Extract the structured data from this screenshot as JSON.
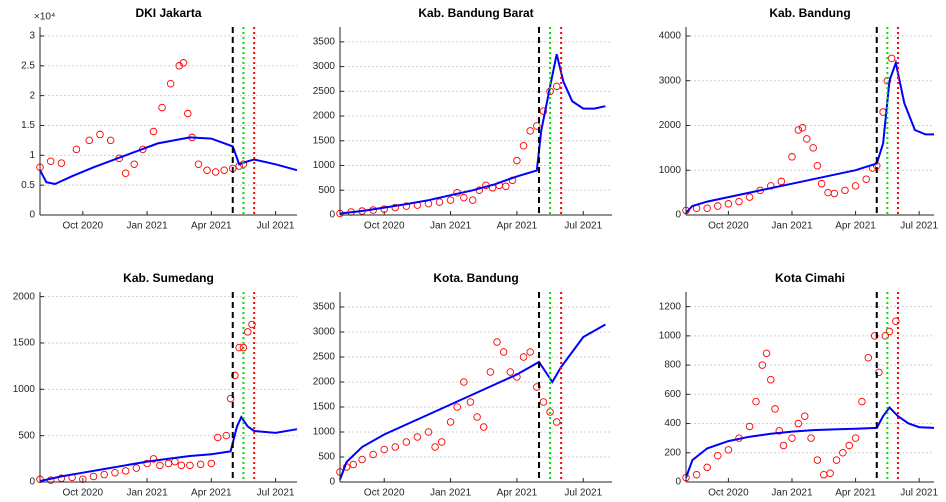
{
  "chart_data": [
    {
      "type": "scatter",
      "title": "DKI Jakarta",
      "y_multiplier": "×10⁴",
      "grid": true,
      "xlim": [
        8,
        20
      ],
      "xticks": [
        {
          "value": 10,
          "label": "Oct 2020"
        },
        {
          "value": 13,
          "label": "Jan 2021"
        },
        {
          "value": 16,
          "label": "Apr 2021"
        },
        {
          "value": 19,
          "label": "Jul 2021"
        }
      ],
      "ylim": [
        0,
        31500
      ],
      "yticks": [
        0,
        {
          "value": 5000,
          "label": "0.5"
        },
        {
          "value": 10000,
          "label": "1"
        },
        {
          "value": 15000,
          "label": "1.5"
        },
        {
          "value": 20000,
          "label": "2"
        },
        {
          "value": 25000,
          "label": "2.5"
        },
        {
          "value": 30000,
          "label": "3"
        }
      ],
      "series": [
        {
          "type": "scatter",
          "color": "#ff0000",
          "x": [
            8,
            8.5,
            9,
            9.7,
            10.3,
            10.8,
            11.3,
            11.7,
            12,
            12.4,
            12.8,
            13.3,
            13.7,
            14.1,
            14.5,
            14.7,
            14.9,
            15.1,
            15.4,
            15.8,
            16.2,
            16.6,
            17,
            17.3,
            17.5
          ],
          "values": [
            8000,
            9000,
            8700,
            11000,
            12500,
            13500,
            12500,
            9500,
            7000,
            8500,
            11000,
            14000,
            18000,
            22000,
            25000,
            25500,
            17000,
            13000,
            8500,
            7500,
            7200,
            7500,
            7800,
            8200,
            8500
          ]
        },
        {
          "type": "line",
          "color": "#0000ff",
          "x": [
            8,
            8.3,
            8.7,
            9.5,
            10.5,
            12,
            13.5,
            15,
            16,
            17,
            17.3,
            17.7,
            18,
            19,
            20
          ],
          "values": [
            7500,
            5500,
            5200,
            6500,
            8000,
            10000,
            12000,
            13000,
            12800,
            11500,
            8500,
            9000,
            9300,
            8500,
            7500
          ]
        }
      ],
      "vlines": [
        {
          "x": 17,
          "color": "#000000",
          "style": "dashed"
        },
        {
          "x": 17.5,
          "color": "#00dd00",
          "style": "dotted"
        },
        {
          "x": 18,
          "color": "#ff0000",
          "style": "dotted"
        }
      ]
    },
    {
      "type": "scatter",
      "title": "Kab. Bandung Barat",
      "grid": true,
      "xlim": [
        8,
        20.3
      ],
      "xticks": [
        {
          "value": 10,
          "label": "Oct 2020"
        },
        {
          "value": 13,
          "label": "Jan 2021"
        },
        {
          "value": 16,
          "label": "Apr 2021"
        },
        {
          "value": 19,
          "label": "Jul 2021"
        }
      ],
      "ylim": [
        0,
        3800
      ],
      "yticks": [
        0,
        500,
        1000,
        1500,
        2000,
        2500,
        3000,
        3500
      ],
      "series": [
        {
          "type": "scatter",
          "color": "#ff0000",
          "x": [
            8,
            8.5,
            9,
            9.5,
            10,
            10.5,
            11,
            11.5,
            12,
            12.5,
            13,
            13.3,
            13.6,
            14,
            14.3,
            14.6,
            14.9,
            15.2,
            15.5,
            15.8,
            16,
            16.3,
            16.6,
            16.9,
            17.2,
            17.5,
            17.8
          ],
          "values": [
            30,
            60,
            80,
            100,
            120,
            150,
            180,
            200,
            230,
            260,
            300,
            450,
            350,
            300,
            500,
            600,
            550,
            600,
            580,
            700,
            1100,
            1400,
            1700,
            1800,
            2100,
            2500,
            2600
          ]
        },
        {
          "type": "line",
          "color": "#0000ff",
          "x": [
            8,
            9,
            10,
            11,
            12,
            13,
            14,
            15,
            16,
            16.9,
            17.1,
            17.5,
            17.8,
            18.1,
            18.5,
            19,
            19.5,
            20
          ],
          "values": [
            30,
            80,
            150,
            220,
            300,
            400,
            500,
            620,
            780,
            900,
            1700,
            2600,
            3250,
            2700,
            2300,
            2150,
            2150,
            2200
          ]
        }
      ],
      "vlines": [
        {
          "x": 17,
          "color": "#000000",
          "style": "dashed"
        },
        {
          "x": 17.5,
          "color": "#00dd00",
          "style": "dotted"
        },
        {
          "x": 18,
          "color": "#ff0000",
          "style": "dotted"
        }
      ]
    },
    {
      "type": "scatter",
      "title": "Kab. Bandung",
      "grid": true,
      "xlim": [
        8,
        19.7
      ],
      "xticks": [
        {
          "value": 10,
          "label": "Oct 2020"
        },
        {
          "value": 13,
          "label": "Jan 2021"
        },
        {
          "value": 16,
          "label": "Apr 2021"
        },
        {
          "value": 19,
          "label": "Jul 2021"
        }
      ],
      "ylim": [
        0,
        4200
      ],
      "yticks": [
        0,
        1000,
        2000,
        3000,
        4000
      ],
      "series": [
        {
          "type": "scatter",
          "color": "#ff0000",
          "x": [
            8,
            8.5,
            9,
            9.5,
            10,
            10.5,
            11,
            11.5,
            12,
            12.5,
            13,
            13.3,
            13.5,
            13.7,
            14,
            14.2,
            14.4,
            14.7,
            15,
            15.5,
            16,
            16.5,
            16.8,
            17,
            17.3,
            17.5,
            17.7
          ],
          "values": [
            100,
            150,
            150,
            200,
            250,
            300,
            400,
            550,
            650,
            750,
            1300,
            1900,
            1950,
            1700,
            1500,
            1100,
            700,
            500,
            480,
            550,
            650,
            800,
            1050,
            1100,
            2300,
            3000,
            3500
          ]
        },
        {
          "type": "line",
          "color": "#0000ff",
          "x": [
            8,
            8.3,
            9,
            10,
            11,
            12,
            13,
            14,
            15,
            16,
            17,
            17.3,
            17.6,
            17.9,
            18.3,
            18.8,
            19.3,
            19.7
          ],
          "values": [
            50,
            200,
            300,
            400,
            500,
            600,
            700,
            800,
            900,
            1000,
            1150,
            1600,
            3000,
            3400,
            2500,
            1900,
            1800,
            1800
          ]
        }
      ],
      "vlines": [
        {
          "x": 17,
          "color": "#000000",
          "style": "dashed"
        },
        {
          "x": 17.5,
          "color": "#00dd00",
          "style": "dotted"
        },
        {
          "x": 18,
          "color": "#ff0000",
          "style": "dotted"
        }
      ]
    },
    {
      "type": "scatter",
      "title": "Kab. Sumedang",
      "grid": true,
      "xlim": [
        8,
        20
      ],
      "xticks": [
        {
          "value": 10,
          "label": "Oct 2020"
        },
        {
          "value": 13,
          "label": "Jan 2021"
        },
        {
          "value": 16,
          "label": "Apr 2021"
        },
        {
          "value": 19,
          "label": "Jul 2021"
        }
      ],
      "ylim": [
        0,
        2050
      ],
      "yticks": [
        0,
        500,
        1000,
        1500,
        2000
      ],
      "series": [
        {
          "type": "scatter",
          "color": "#ff0000",
          "x": [
            8,
            8.5,
            9,
            9.5,
            10,
            10.5,
            11,
            11.5,
            12,
            12.5,
            13,
            13.3,
            13.6,
            14,
            14.3,
            14.6,
            15,
            15.5,
            16,
            16.3,
            16.7,
            16.9,
            17.1,
            17.3,
            17.5,
            17.7,
            17.9
          ],
          "values": [
            30,
            20,
            40,
            50,
            30,
            60,
            80,
            100,
            120,
            150,
            200,
            250,
            180,
            200,
            220,
            180,
            180,
            190,
            200,
            480,
            500,
            900,
            1150,
            1450,
            1450,
            1620,
            1700
          ]
        },
        {
          "type": "line",
          "color": "#0000ff",
          "x": [
            8,
            9,
            10,
            11,
            12,
            13,
            14,
            15,
            16,
            16.9,
            17.2,
            17.4,
            17.7,
            18,
            19,
            20
          ],
          "values": [
            10,
            60,
            100,
            140,
            180,
            220,
            250,
            280,
            300,
            330,
            600,
            700,
            600,
            550,
            530,
            570
          ]
        }
      ],
      "vlines": [
        {
          "x": 17,
          "color": "#000000",
          "style": "dashed"
        },
        {
          "x": 17.5,
          "color": "#00dd00",
          "style": "dotted"
        },
        {
          "x": 18,
          "color": "#ff0000",
          "style": "dotted"
        }
      ]
    },
    {
      "type": "scatter",
      "title": "Kota. Bandung",
      "grid": true,
      "xlim": [
        8,
        20.3
      ],
      "xticks": [
        {
          "value": 10,
          "label": "Oct 2020"
        },
        {
          "value": 13,
          "label": "Jan 2021"
        },
        {
          "value": 16,
          "label": "Apr 2021"
        },
        {
          "value": 19,
          "label": "Jul 2021"
        }
      ],
      "ylim": [
        0,
        3800
      ],
      "yticks": [
        0,
        500,
        1000,
        1500,
        2000,
        2500,
        3000,
        3500
      ],
      "series": [
        {
          "type": "scatter",
          "color": "#ff0000",
          "x": [
            8,
            8.3,
            8.6,
            9,
            9.5,
            10,
            10.5,
            11,
            11.5,
            12,
            12.3,
            12.6,
            13,
            13.3,
            13.6,
            13.9,
            14.2,
            14.5,
            14.8,
            15.1,
            15.4,
            15.7,
            16,
            16.3,
            16.6,
            16.9,
            17.2,
            17.5,
            17.8
          ],
          "values": [
            200,
            300,
            350,
            450,
            550,
            650,
            700,
            800,
            900,
            1000,
            700,
            800,
            1200,
            1500,
            2000,
            1600,
            1300,
            1100,
            2200,
            2800,
            2600,
            2200,
            2100,
            2500,
            2600,
            1900,
            1600,
            1400,
            1200
          ]
        },
        {
          "type": "line",
          "color": "#0000ff",
          "x": [
            8,
            8.3,
            9,
            10,
            11,
            12,
            13,
            14,
            15,
            16,
            17,
            17.3,
            17.6,
            18,
            18.5,
            19,
            20
          ],
          "values": [
            50,
            400,
            700,
            950,
            1150,
            1350,
            1550,
            1750,
            1950,
            2150,
            2400,
            2200,
            2000,
            2300,
            2600,
            2900,
            3150
          ]
        }
      ],
      "vlines": [
        {
          "x": 17,
          "color": "#000000",
          "style": "dashed"
        },
        {
          "x": 17.5,
          "color": "#00dd00",
          "style": "dotted"
        },
        {
          "x": 18,
          "color": "#ff0000",
          "style": "dotted"
        }
      ]
    },
    {
      "type": "scatter",
      "title": "Kota Cimahi",
      "grid": true,
      "xlim": [
        8,
        19.7
      ],
      "xticks": [
        {
          "value": 10,
          "label": "Oct 2020"
        },
        {
          "value": 13,
          "label": "Jan 2021"
        },
        {
          "value": 16,
          "label": "Apr 2021"
        },
        {
          "value": 19,
          "label": "Jul 2021"
        }
      ],
      "ylim": [
        0,
        1300
      ],
      "yticks": [
        0,
        200,
        400,
        600,
        800,
        1000,
        1200
      ],
      "series": [
        {
          "type": "scatter",
          "color": "#ff0000",
          "x": [
            8,
            8.5,
            9,
            9.5,
            10,
            10.5,
            11,
            11.3,
            11.6,
            11.8,
            12,
            12.2,
            12.4,
            12.6,
            13,
            13.3,
            13.6,
            13.9,
            14.2,
            14.5,
            14.8,
            15.1,
            15.4,
            15.7,
            16,
            16.3,
            16.6,
            16.9,
            17.1,
            17.4,
            17.6,
            17.9
          ],
          "values": [
            30,
            50,
            100,
            180,
            220,
            300,
            380,
            550,
            800,
            880,
            700,
            500,
            350,
            250,
            300,
            400,
            450,
            300,
            150,
            50,
            60,
            150,
            200,
            250,
            300,
            550,
            850,
            1000,
            750,
            1000,
            1030,
            1100
          ]
        },
        {
          "type": "line",
          "color": "#0000ff",
          "x": [
            8,
            8.3,
            9,
            10,
            11,
            12,
            13,
            14,
            15,
            16,
            17,
            17.3,
            17.6,
            18,
            18.5,
            19,
            19.7
          ],
          "values": [
            30,
            150,
            230,
            280,
            310,
            330,
            345,
            355,
            360,
            365,
            370,
            450,
            510,
            450,
            400,
            375,
            370
          ]
        }
      ],
      "vlines": [
        {
          "x": 17,
          "color": "#000000",
          "style": "dashed"
        },
        {
          "x": 17.5,
          "color": "#00dd00",
          "style": "dotted"
        },
        {
          "x": 18,
          "color": "#ff0000",
          "style": "dotted"
        }
      ]
    }
  ]
}
